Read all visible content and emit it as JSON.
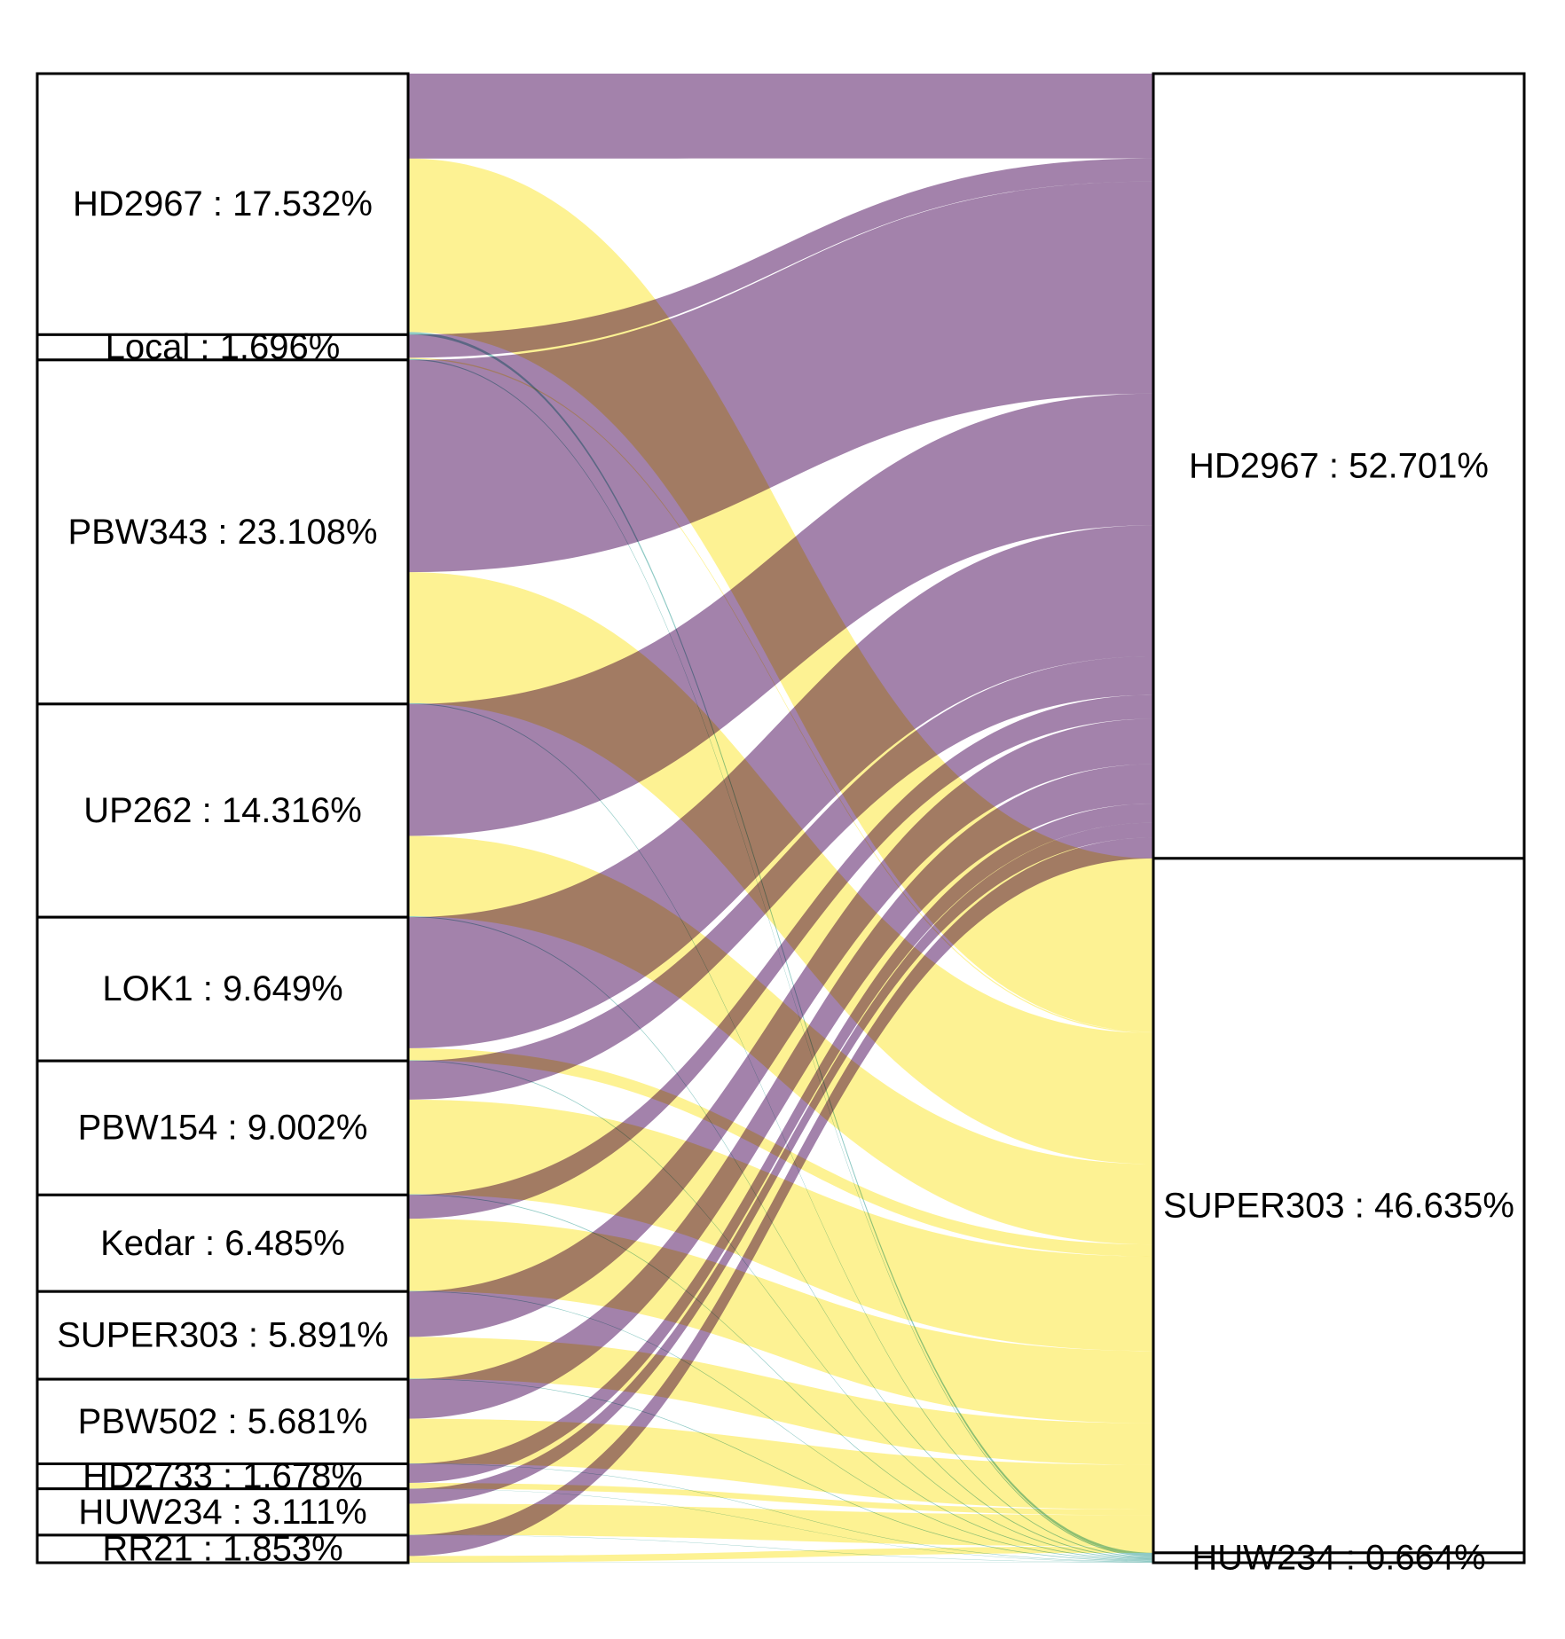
{
  "chart_data": {
    "type": "sankey",
    "title": "",
    "colors": {
      "HD2967": "#a281aa",
      "SUPER303": "#fdf292",
      "HUW234": "#8ec9c4"
    },
    "left_nodes": [
      {
        "name": "HD2967",
        "label": "HD2967 : 17.532%",
        "value": 17.532
      },
      {
        "name": "Local",
        "label": "Local : 1.696%",
        "value": 1.696
      },
      {
        "name": "PBW343",
        "label": "PBW343 : 23.108%",
        "value": 23.108
      },
      {
        "name": "UP262",
        "label": "UP262 : 14.316%",
        "value": 14.316
      },
      {
        "name": "LOK1",
        "label": "LOK1 : 9.649%",
        "value": 9.649
      },
      {
        "name": "PBW154",
        "label": "PBW154 : 9.002%",
        "value": 9.002
      },
      {
        "name": "Kedar",
        "label": "Kedar : 6.485%",
        "value": 6.485
      },
      {
        "name": "SUPER303",
        "label": "SUPER303 : 5.891%",
        "value": 5.891
      },
      {
        "name": "PBW502",
        "label": "PBW502 : 5.681%",
        "value": 5.681
      },
      {
        "name": "HD2733",
        "label": "HD2733 : 1.678%",
        "value": 1.678
      },
      {
        "name": "HUW234",
        "label": "HUW234 : 3.111%",
        "value": 3.111
      },
      {
        "name": "RR21",
        "label": "RR21 : 1.853%",
        "value": 1.853
      }
    ],
    "right_nodes": [
      {
        "name": "HD2967",
        "label": "HD2967 : 52.701%",
        "value": 52.701
      },
      {
        "name": "SUPER303",
        "label": "SUPER303 : 46.635%",
        "value": 46.635
      },
      {
        "name": "HUW234",
        "label": "HUW234 : 0.664%",
        "value": 0.664
      }
    ],
    "flows": [
      {
        "source": "HD2967",
        "target": "HD2967",
        "value": 5.7
      },
      {
        "source": "HD2967",
        "target": "SUPER303",
        "value": 11.65
      },
      {
        "source": "HD2967",
        "target": "HUW234",
        "value": 0.18
      },
      {
        "source": "Local",
        "target": "HD2967",
        "value": 1.55
      },
      {
        "source": "Local",
        "target": "SUPER303",
        "value": 0.08
      },
      {
        "source": "Local",
        "target": "HUW234",
        "value": 0.07
      },
      {
        "source": "PBW343",
        "target": "HD2967",
        "value": 14.25
      },
      {
        "source": "PBW343",
        "target": "SUPER303",
        "value": 8.8
      },
      {
        "source": "PBW343",
        "target": "HUW234",
        "value": 0.06
      },
      {
        "source": "UP262",
        "target": "HD2967",
        "value": 8.85
      },
      {
        "source": "UP262",
        "target": "SUPER303",
        "value": 5.4
      },
      {
        "source": "UP262",
        "target": "HUW234",
        "value": 0.06
      },
      {
        "source": "LOK1",
        "target": "HD2967",
        "value": 8.8
      },
      {
        "source": "LOK1",
        "target": "SUPER303",
        "value": 0.8
      },
      {
        "source": "LOK1",
        "target": "HUW234",
        "value": 0.05
      },
      {
        "source": "PBW154",
        "target": "HD2967",
        "value": 2.6
      },
      {
        "source": "PBW154",
        "target": "SUPER303",
        "value": 6.35
      },
      {
        "source": "PBW154",
        "target": "HUW234",
        "value": 0.05
      },
      {
        "source": "Kedar",
        "target": "HD2967",
        "value": 1.6
      },
      {
        "source": "Kedar",
        "target": "SUPER303",
        "value": 4.85
      },
      {
        "source": "Kedar",
        "target": "HUW234",
        "value": 0.04
      },
      {
        "source": "SUPER303",
        "target": "HD2967",
        "value": 3.05
      },
      {
        "source": "SUPER303",
        "target": "SUPER303",
        "value": 2.8
      },
      {
        "source": "SUPER303",
        "target": "HUW234",
        "value": 0.04
      },
      {
        "source": "PBW502",
        "target": "HD2967",
        "value": 2.65
      },
      {
        "source": "PBW502",
        "target": "SUPER303",
        "value": 3.0
      },
      {
        "source": "PBW502",
        "target": "HUW234",
        "value": 0.03
      },
      {
        "source": "HD2733",
        "target": "HD2967",
        "value": 1.28
      },
      {
        "source": "HD2733",
        "target": "SUPER303",
        "value": 0.38
      },
      {
        "source": "HD2733",
        "target": "HUW234",
        "value": 0.02
      },
      {
        "source": "HUW234",
        "target": "HD2967",
        "value": 1.0
      },
      {
        "source": "HUW234",
        "target": "SUPER303",
        "value": 2.09
      },
      {
        "source": "HUW234",
        "target": "HUW234",
        "value": 0.02
      },
      {
        "source": "RR21",
        "target": "HD2967",
        "value": 1.4
      },
      {
        "source": "RR21",
        "target": "SUPER303",
        "value": 0.44
      },
      {
        "source": "RR21",
        "target": "HUW234",
        "value": 0.013
      }
    ]
  }
}
